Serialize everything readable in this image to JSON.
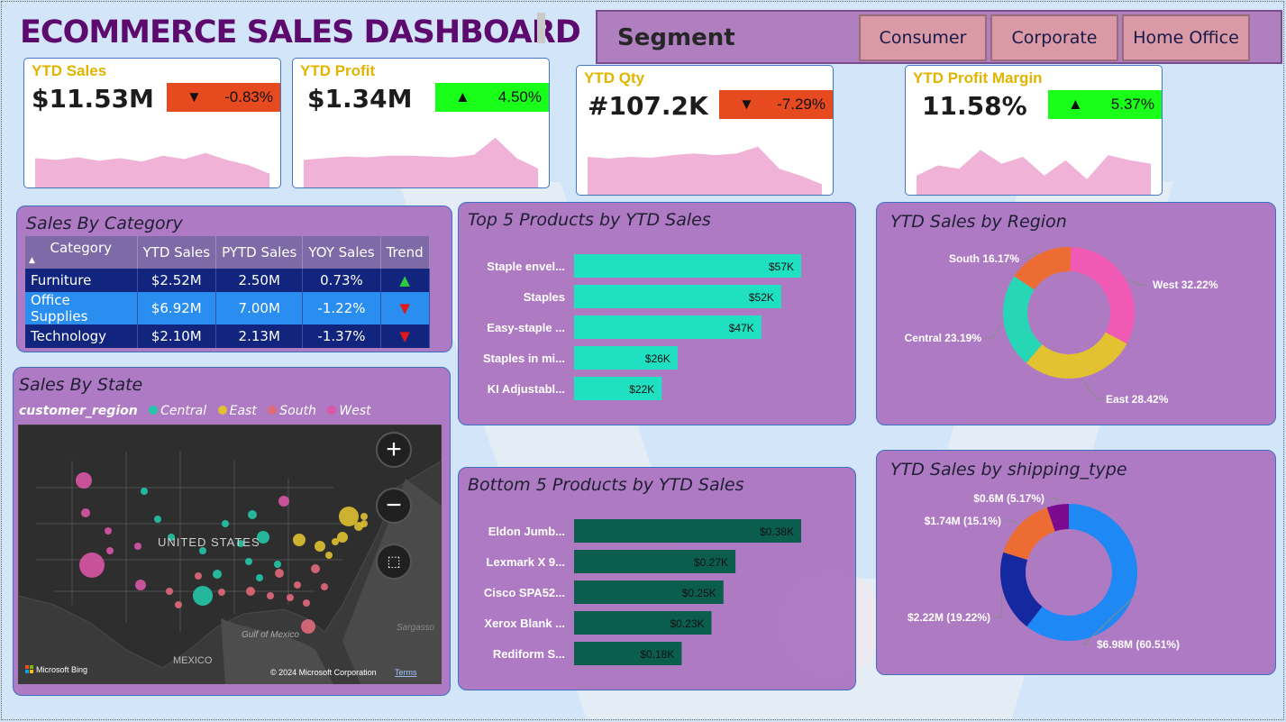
{
  "title": "ECOMMERCE SALES DASHBOARD",
  "segment": {
    "label": "Segment",
    "options": [
      "Consumer",
      "Corporate",
      "Home Office"
    ]
  },
  "kpis": [
    {
      "title": "YTD Sales",
      "value": "$11.53M",
      "delta": "-0.83%",
      "direction": "down",
      "delta_color": "#e84a1f",
      "spark": [
        30,
        28,
        31,
        27,
        30,
        26,
        33,
        29,
        36,
        28,
        22,
        12
      ]
    },
    {
      "title": "YTD Profit",
      "value": "$1.34M",
      "delta": "4.50%",
      "direction": "up",
      "delta_color": "#19ff1a",
      "spark": [
        28,
        30,
        32,
        31,
        33,
        33,
        32,
        31,
        34,
        54,
        30,
        18
      ]
    },
    {
      "title": "YTD Qty",
      "value": "#107.2K",
      "delta": "-7.29%",
      "direction": "down",
      "delta_color": "#e84a1f",
      "spark": [
        40,
        38,
        40,
        39,
        42,
        44,
        42,
        44,
        52,
        26,
        18,
        8
      ]
    },
    {
      "title": "YTD Profit Margin",
      "value": "11.58%",
      "delta": "5.37%",
      "direction": "up",
      "delta_color": "#19ff1a",
      "spark": [
        18,
        30,
        26,
        48,
        32,
        40,
        18,
        36,
        14,
        42,
        36,
        32
      ]
    }
  ],
  "category_table": {
    "title": "Sales By Category",
    "headers": [
      "Category",
      "YTD Sales",
      "PYTD Sales",
      "YOY Sales",
      "Trend"
    ],
    "rows": [
      {
        "category": "Furniture",
        "ytd": "$2.52M",
        "pytd": "2.50M",
        "yoy": "0.73%",
        "trend": "up"
      },
      {
        "category": "Office Supplies",
        "ytd": "$6.92M",
        "pytd": "7.00M",
        "yoy": "-1.22%",
        "trend": "down"
      },
      {
        "category": "Technology",
        "ytd": "$2.10M",
        "pytd": "2.13M",
        "yoy": "-1.37%",
        "trend": "down"
      }
    ]
  },
  "state_map": {
    "title": "Sales By State",
    "legend_title": "customer_region",
    "legend": [
      {
        "name": "Central",
        "color": "#23c7a8"
      },
      {
        "name": "East",
        "color": "#dfc132"
      },
      {
        "name": "South",
        "color": "#e0697a"
      },
      {
        "name": "West",
        "color": "#d957a5"
      }
    ],
    "labels": {
      "country": "UNITED STATES",
      "gulf": "Gulf of Mexico",
      "mexico": "MEXICO",
      "sargasso": "Sargasso",
      "bing": "Microsoft Bing",
      "copyright": "© 2024 Microsoft Corporation",
      "terms": "Terms"
    }
  },
  "chart_data": [
    {
      "type": "bar",
      "title": "Top 5 Products by YTD Sales",
      "categories": [
        "Staple envel...",
        "Staples",
        "Easy-staple ...",
        "Staples in mi...",
        "KI Adjustabl..."
      ],
      "values": [
        57,
        52,
        47,
        26,
        22
      ],
      "value_labels": [
        "$57K",
        "$52K",
        "$47K",
        "$26K",
        "$22K"
      ],
      "color": "#1fe0c0"
    },
    {
      "type": "bar",
      "title": "Bottom 5 Products by YTD Sales",
      "categories": [
        "Eldon Jumb...",
        "Lexmark X 9...",
        "Cisco SPA52...",
        "Xerox Blank ...",
        "Rediform S..."
      ],
      "values": [
        0.38,
        0.27,
        0.25,
        0.23,
        0.18
      ],
      "value_labels": [
        "$0.38K",
        "$0.27K",
        "$0.25K",
        "$0.23K",
        "$0.18K"
      ],
      "color": "#0b5e4e"
    },
    {
      "type": "pie",
      "title": "YTD Sales by Region",
      "slices": [
        {
          "label": "West 32.22%",
          "value": 32.22,
          "color": "#f05ab4"
        },
        {
          "label": "East 28.42%",
          "value": 28.42,
          "color": "#e2c230"
        },
        {
          "label": "Central 23.19%",
          "value": 23.19,
          "color": "#27d6b4"
        },
        {
          "label": "South 16.17%",
          "value": 16.17,
          "color": "#ed6c34"
        }
      ]
    },
    {
      "type": "pie",
      "title": "YTD Sales by shipping_type",
      "slices": [
        {
          "label": "$6.98M (60.51%)",
          "value": 60.51,
          "color": "#1e88f5"
        },
        {
          "label": "$2.22M (19.22%)",
          "value": 19.22,
          "color": "#1428a0"
        },
        {
          "label": "$1.74M (15.1%)",
          "value": 15.1,
          "color": "#ed6c34"
        },
        {
          "label": "$0.6M (5.17%)",
          "value": 5.17,
          "color": "#7a0a8e"
        }
      ]
    }
  ]
}
